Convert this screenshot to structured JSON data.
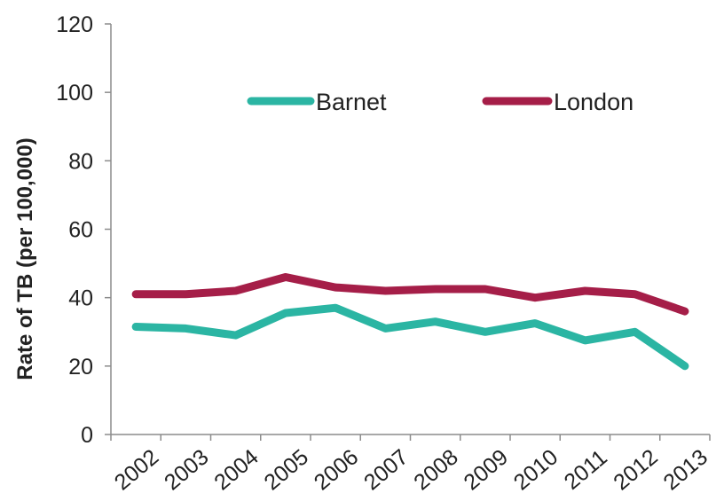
{
  "chart_data": {
    "type": "line",
    "title": "",
    "xlabel": "",
    "ylabel": "Rate of TB (per 100,000)",
    "categories": [
      "2002",
      "2003",
      "2004",
      "2005",
      "2006",
      "2007",
      "2008",
      "2009",
      "2010",
      "2011",
      "2012",
      "2013"
    ],
    "ylim": [
      0,
      120
    ],
    "yticks": [
      "0",
      "20",
      "40",
      "60",
      "80",
      "100",
      "120"
    ],
    "grid": false,
    "legend_position": "top-center",
    "series": [
      {
        "name": "Barnet",
        "color": "#2bb5a3",
        "values": [
          31.5,
          31,
          29,
          35.5,
          37,
          31,
          33,
          30,
          32.5,
          27.5,
          30,
          20
        ]
      },
      {
        "name": "London",
        "color": "#a51e48",
        "values": [
          41,
          41,
          42,
          46,
          43,
          42,
          42.5,
          42.5,
          40,
          42,
          41,
          36
        ]
      }
    ]
  }
}
